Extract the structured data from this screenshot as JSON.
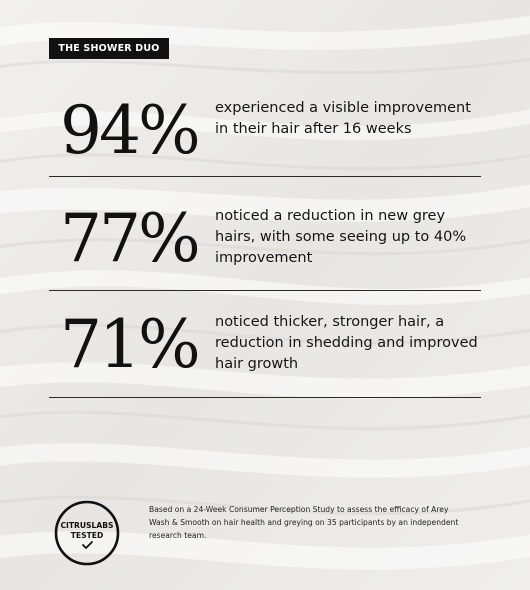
{
  "tag": "THE SHOWER DUO",
  "stats": [
    {
      "value": "94%",
      "text": "experienced a visible improvement in their hair after 16 weeks"
    },
    {
      "value": "77%",
      "text": "noticed a reduction in new grey hairs, with some seeing up to 40% improvement"
    },
    {
      "value": "71%",
      "text": "noticed thicker, stronger hair, a reduction in shedding and improved hair growth"
    }
  ],
  "seal": {
    "line1": "CITRUSLABS",
    "line2": "TESTED",
    "icon": "checkmark-icon"
  },
  "footnote": "Based on  a 24-Week Consumer Perception Study to assess the efficacy of Arey Wash & Smooth on hair health and greying on 35 participants by an independent research team.",
  "colors": {
    "background": "#ecebe9",
    "text": "#111111",
    "tag_bg": "#111111",
    "tag_text": "#ffffff"
  }
}
